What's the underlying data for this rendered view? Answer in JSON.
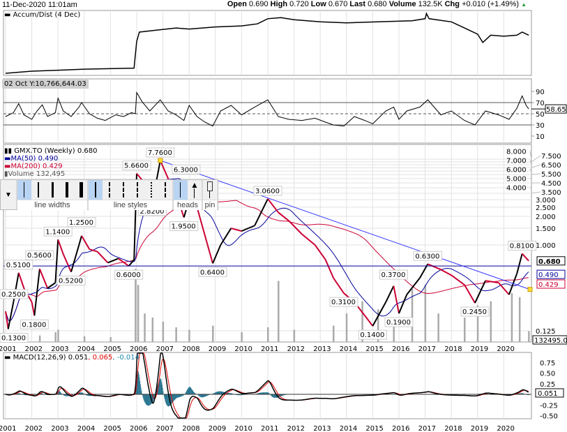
{
  "header": {
    "date": "11-Dec-2020 11:01am",
    "open_label": "Open",
    "open": "0.690",
    "high_label": "High",
    "high": "0.720",
    "low_label": "Low",
    "low": "0.670",
    "last_label": "Last",
    "last": "0.680",
    "volume_label": "Volume",
    "volume": "132.5K",
    "chg_label": "Chg",
    "chg": "+0.010 (+1.49%)",
    "chg_icon": "up-triangle-icon"
  },
  "accum": {
    "legend": "Accum/Dist (4 Dec)",
    "tooltip": "02 Oct Y:10,766,644.03",
    "points": [
      [
        2001,
        0
      ],
      [
        2001.5,
        0.5
      ],
      [
        2002,
        1
      ],
      [
        2003,
        1.5
      ],
      [
        2004,
        2
      ],
      [
        2005.9,
        2.5
      ],
      [
        2006.0,
        15.5
      ],
      [
        2006.1,
        20
      ],
      [
        2006.8,
        21
      ],
      [
        2007.5,
        22
      ],
      [
        2008,
        21.5
      ],
      [
        2009,
        22.5
      ],
      [
        2010,
        23
      ],
      [
        2010.6,
        24
      ],
      [
        2011,
        26.5
      ],
      [
        2011.5,
        27
      ],
      [
        2012,
        26
      ],
      [
        2013,
        25
      ],
      [
        2014,
        24.5
      ],
      [
        2015.2,
        25
      ],
      [
        2016.5,
        25.5
      ],
      [
        2017,
        26.5
      ],
      [
        2017.05,
        29
      ],
      [
        2017.15,
        26.5
      ],
      [
        2018,
        25
      ],
      [
        2018.5,
        22
      ],
      [
        2019,
        19
      ],
      [
        2019.2,
        15
      ],
      [
        2019.5,
        18.5
      ],
      [
        2020,
        18
      ],
      [
        2020.5,
        18.5
      ],
      [
        2020.7,
        20
      ],
      [
        2020.95,
        18.5
      ]
    ]
  },
  "rsi": {
    "ticks": [
      90,
      70,
      50,
      30,
      10
    ],
    "current": "58.65",
    "points": [
      [
        2001,
        45
      ],
      [
        2001.3,
        52
      ],
      [
        2001.5,
        68
      ],
      [
        2001.7,
        48
      ],
      [
        2002,
        40
      ],
      [
        2002.2,
        55
      ],
      [
        2002.4,
        66
      ],
      [
        2002.6,
        45
      ],
      [
        2002.9,
        52
      ],
      [
        2003.0,
        78
      ],
      [
        2003.2,
        55
      ],
      [
        2003.5,
        45
      ],
      [
        2003.8,
        62
      ],
      [
        2003.9,
        70
      ],
      [
        2004.2,
        50
      ],
      [
        2004.5,
        42
      ],
      [
        2004.8,
        38
      ],
      [
        2005.2,
        48
      ],
      [
        2005.5,
        45
      ],
      [
        2005.8,
        52
      ],
      [
        2005.95,
        50
      ],
      [
        2006.0,
        88
      ],
      [
        2006.2,
        72
      ],
      [
        2006.5,
        55
      ],
      [
        2006.9,
        75
      ],
      [
        2007.2,
        55
      ],
      [
        2007.5,
        48
      ],
      [
        2007.8,
        38
      ],
      [
        2008.0,
        65
      ],
      [
        2008.3,
        45
      ],
      [
        2008.6,
        35
      ],
      [
        2008.9,
        28
      ],
      [
        2009.2,
        55
      ],
      [
        2009.6,
        65
      ],
      [
        2010.0,
        48
      ],
      [
        2010.5,
        62
      ],
      [
        2011.0,
        75
      ],
      [
        2011.4,
        45
      ],
      [
        2011.8,
        40
      ],
      [
        2012.3,
        38
      ],
      [
        2012.8,
        42
      ],
      [
        2013.2,
        35
      ],
      [
        2013.5,
        30
      ],
      [
        2013.9,
        28
      ],
      [
        2014.3,
        45
      ],
      [
        2014.7,
        38
      ],
      [
        2015.0,
        32
      ],
      [
        2015.5,
        55
      ],
      [
        2015.8,
        62
      ],
      [
        2016.0,
        40
      ],
      [
        2016.3,
        55
      ],
      [
        2016.8,
        62
      ],
      [
        2017.1,
        75
      ],
      [
        2017.6,
        48
      ],
      [
        2018.0,
        55
      ],
      [
        2018.5,
        38
      ],
      [
        2018.9,
        30
      ],
      [
        2019.3,
        55
      ],
      [
        2019.8,
        48
      ],
      [
        2020.2,
        40
      ],
      [
        2020.5,
        60
      ],
      [
        2020.7,
        82
      ],
      [
        2020.85,
        65
      ],
      [
        2020.95,
        58.65
      ]
    ]
  },
  "price": {
    "legend_symbol": "GMX.TO (Weekly) 0.680",
    "legend_ma50": "MA(50) 0.490",
    "legend_ma200": "MA(200) 0.429",
    "legend_volume": "Volume 132,495",
    "last_value": "0.680",
    "ma50_value": "0.490",
    "ma200_value": "0.429",
    "volume_value": "132495.0",
    "axis_ticks": [
      "8.000",
      "7.500",
      "7.000",
      "6.500",
      "6.000",
      "5.500",
      "5.000",
      "4.500",
      "4.000",
      "3.500",
      "3.000",
      "2.500",
      "2.000",
      "1.500",
      "1.000",
      "0.125"
    ],
    "annotations": [
      {
        "t": 2001.1,
        "p": 0.13,
        "text": "0.1300",
        "pos": "below"
      },
      {
        "t": 2001.0,
        "p": 0.25,
        "text": "0.2500",
        "pos": "above"
      },
      {
        "t": 2001.5,
        "p": 0.51,
        "text": "0.5100",
        "pos": "above"
      },
      {
        "t": 2002.1,
        "p": 0.18,
        "text": "0.1800",
        "pos": "below"
      },
      {
        "t": 2002.3,
        "p": 0.56,
        "text": "0.5600",
        "pos": "above"
      },
      {
        "t": 2003.0,
        "p": 1.14,
        "text": "1.1400",
        "pos": "above"
      },
      {
        "t": 2003.5,
        "p": 0.52,
        "text": "0.5200",
        "pos": "below"
      },
      {
        "t": 2003.9,
        "p": 1.25,
        "text": "1.2500",
        "pos": "above"
      },
      {
        "t": 2005.7,
        "p": 0.6,
        "text": "0.6000",
        "pos": "below"
      },
      {
        "t": 2006.0,
        "p": 5.66,
        "text": "5.6600",
        "pos": "above"
      },
      {
        "t": 2006.6,
        "p": 2.82,
        "text": "2.8200",
        "pos": "below"
      },
      {
        "t": 2006.9,
        "p": 7.76,
        "text": "7.7600",
        "pos": "above"
      },
      {
        "t": 2007.3,
        "p": 6.3,
        "text": "6.3000",
        "pos": "right"
      },
      {
        "t": 2007.8,
        "p": 1.95,
        "text": "1.9500",
        "pos": "below"
      },
      {
        "t": 2008.9,
        "p": 0.64,
        "text": "0.6400",
        "pos": "below"
      },
      {
        "t": 2011.0,
        "p": 3.06,
        "text": "3.0600",
        "pos": "above"
      },
      {
        "t": 2013.9,
        "p": 0.31,
        "text": "0.3100",
        "pos": "below"
      },
      {
        "t": 2015.0,
        "p": 0.14,
        "text": "0.1400",
        "pos": "below"
      },
      {
        "t": 2015.8,
        "p": 0.4,
        "text": "0.3700",
        "pos": "above"
      },
      {
        "t": 2016.0,
        "p": 0.19,
        "text": "0.1900",
        "pos": "below"
      },
      {
        "t": 2017.1,
        "p": 0.63,
        "text": "0.6300",
        "pos": "above"
      },
      {
        "t": 2018.9,
        "p": 0.245,
        "text": "0.2450",
        "pos": "below"
      },
      {
        "t": 2020.7,
        "p": 0.81,
        "text": "0.8100",
        "pos": "above"
      }
    ]
  },
  "macd": {
    "legend_name": "MACD(12,26,9) 0.051",
    "legend_signal": ", 0.065",
    "legend_hist": ", -0.014",
    "ticks": [
      "0.75",
      "0.50",
      "0.25",
      "-0.25",
      "-0.50"
    ],
    "current": "0.051"
  },
  "x_axis": {
    "years": [
      "2001",
      "2002",
      "2003",
      "2004",
      "2005",
      "2006",
      "2007",
      "2008",
      "2009",
      "2010",
      "2011",
      "2012",
      "2013",
      "2014",
      "2015",
      "2016",
      "2017",
      "2018",
      "2019",
      "2020"
    ]
  },
  "toolbar": {
    "dropdown_icon": "triangle-down-icon",
    "line_widths_label": "line widths",
    "line_styles_label": "line styles",
    "heads_label": "heads",
    "pin_label": "pin"
  },
  "chart_data": {
    "type": "line",
    "title": "GMX.TO (Weekly) 0.680",
    "y_scale": "log",
    "ylim": [
      0.12,
      8.5
    ],
    "xlim": [
      2001,
      2021
    ],
    "grid": true,
    "legend_placement": "top-left",
    "colors": {
      "price_up": "#000000",
      "price_down": "#cc0033",
      "ma50": "#000099",
      "ma200": "#cc0033",
      "trendline": "#3333ff",
      "hline": "#000099",
      "volume": "#aaaaaa",
      "macd": "#000000",
      "signal": "#dd0000",
      "hist": "#1f6f8b",
      "accum": "#000000"
    },
    "series": [
      {
        "name": "GMX.TO",
        "points": [
          [
            2001.0,
            0.2
          ],
          [
            2001.1,
            0.13
          ],
          [
            2001.3,
            0.25
          ],
          [
            2001.5,
            0.51
          ],
          [
            2001.7,
            0.35
          ],
          [
            2002.0,
            0.25
          ],
          [
            2002.1,
            0.18
          ],
          [
            2002.3,
            0.56
          ],
          [
            2002.6,
            0.35
          ],
          [
            2002.9,
            0.4
          ],
          [
            2003.0,
            1.14
          ],
          [
            2003.2,
            0.8
          ],
          [
            2003.5,
            0.52
          ],
          [
            2003.8,
            1.0
          ],
          [
            2003.9,
            1.25
          ],
          [
            2004.2,
            0.9
          ],
          [
            2004.5,
            0.85
          ],
          [
            2004.9,
            0.65
          ],
          [
            2005.3,
            0.72
          ],
          [
            2005.7,
            0.6
          ],
          [
            2005.9,
            0.7
          ],
          [
            2006.0,
            5.66
          ],
          [
            2006.3,
            4.5
          ],
          [
            2006.6,
            2.82
          ],
          [
            2006.9,
            7.76
          ],
          [
            2007.2,
            5.0
          ],
          [
            2007.5,
            3.5
          ],
          [
            2007.8,
            1.95
          ],
          [
            2008.0,
            3.0
          ],
          [
            2008.3,
            2.5
          ],
          [
            2008.9,
            0.64
          ],
          [
            2009.2,
            1.0
          ],
          [
            2009.6,
            1.5
          ],
          [
            2010.0,
            1.4
          ],
          [
            2010.5,
            1.6
          ],
          [
            2011.0,
            3.06
          ],
          [
            2011.4,
            2.2
          ],
          [
            2011.8,
            1.8
          ],
          [
            2012.3,
            1.3
          ],
          [
            2012.8,
            1.0
          ],
          [
            2013.2,
            0.7
          ],
          [
            2013.5,
            0.45
          ],
          [
            2013.9,
            0.31
          ],
          [
            2014.3,
            0.25
          ],
          [
            2014.7,
            0.18
          ],
          [
            2015.0,
            0.14
          ],
          [
            2015.5,
            0.25
          ],
          [
            2015.8,
            0.37
          ],
          [
            2016.0,
            0.19
          ],
          [
            2016.3,
            0.3
          ],
          [
            2016.8,
            0.45
          ],
          [
            2017.1,
            0.63
          ],
          [
            2017.6,
            0.55
          ],
          [
            2018.0,
            0.48
          ],
          [
            2018.5,
            0.38
          ],
          [
            2018.9,
            0.245
          ],
          [
            2019.3,
            0.42
          ],
          [
            2019.8,
            0.4
          ],
          [
            2020.2,
            0.3
          ],
          [
            2020.5,
            0.5
          ],
          [
            2020.7,
            0.81
          ],
          [
            2020.95,
            0.68
          ]
        ]
      },
      {
        "name": "MA(50)",
        "derived_from": "GMX.TO",
        "period": 50
      },
      {
        "name": "MA(200)",
        "derived_from": "GMX.TO",
        "period": 200
      }
    ],
    "horizontal_line": 0.6,
    "trendline": [
      [
        2006.9,
        7.76
      ],
      [
        2021.0,
        0.34
      ]
    ],
    "volume": [
      [
        2001.5,
        60000
      ],
      [
        2002.3,
        80000
      ],
      [
        2002.9,
        120000
      ],
      [
        2003.0,
        150000
      ],
      [
        2004.0,
        70000
      ],
      [
        2005.0,
        60000
      ],
      [
        2005.95,
        900000
      ],
      [
        2006.05,
        700000
      ],
      [
        2006.3,
        350000
      ],
      [
        2006.6,
        300000
      ],
      [
        2007.0,
        250000
      ],
      [
        2007.5,
        180000
      ],
      [
        2008.0,
        150000
      ],
      [
        2008.9,
        200000
      ],
      [
        2010.0,
        120000
      ],
      [
        2011.0,
        180000
      ],
      [
        2011.4,
        750000
      ],
      [
        2012.0,
        150000
      ],
      [
        2013.5,
        200000
      ],
      [
        2014.0,
        350000
      ],
      [
        2014.6,
        500000
      ],
      [
        2015.2,
        400000
      ],
      [
        2015.8,
        300000
      ],
      [
        2016.5,
        650000
      ],
      [
        2017.0,
        700000
      ],
      [
        2017.5,
        350000
      ],
      [
        2018.5,
        300000
      ],
      [
        2019.0,
        450000
      ],
      [
        2019.5,
        500000
      ],
      [
        2020.3,
        600000
      ],
      [
        2020.6,
        550000
      ],
      [
        2020.95,
        132495
      ]
    ]
  }
}
